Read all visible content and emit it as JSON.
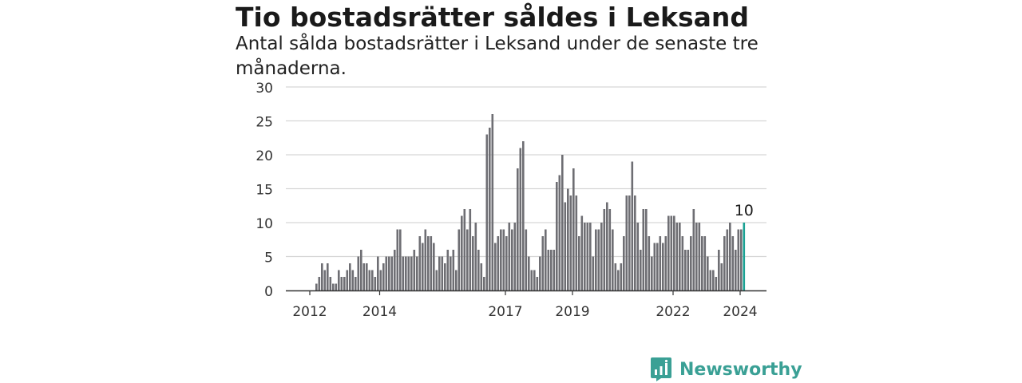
{
  "title": "Tio bostadsrätter såldes i Leksand",
  "subtitle": "Antal sålda bostadsrätter i Leksand under de senaste tre månaderna.",
  "brand": "Newsworthy",
  "colors": {
    "bar": "#6e6e73",
    "highlight": "#1aa193",
    "grid": "#d6d6d6",
    "axis": "#333333",
    "brand": "#3aa095"
  },
  "chart_data": {
    "type": "bar",
    "ylim": [
      0,
      30
    ],
    "yticks": [
      0,
      5,
      10,
      15,
      20,
      25,
      30
    ],
    "xtick_labels": [
      "2012",
      "2014",
      "2017",
      "2019",
      "2022",
      "2024"
    ],
    "grid": true,
    "last_value_label": "10",
    "values": [
      0,
      0,
      0,
      0,
      0,
      0,
      0,
      0,
      0,
      0,
      1,
      2,
      4,
      3,
      4,
      2,
      1,
      1,
      3,
      2,
      2,
      3,
      4,
      3,
      2,
      5,
      6,
      4,
      4,
      3,
      3,
      2,
      5,
      3,
      4,
      5,
      5,
      5,
      6,
      9,
      9,
      5,
      5,
      5,
      5,
      6,
      5,
      8,
      7,
      9,
      8,
      8,
      7,
      3,
      5,
      5,
      4,
      6,
      5,
      6,
      3,
      9,
      11,
      12,
      9,
      12,
      8,
      10,
      6,
      4,
      2,
      23,
      24,
      26,
      7,
      8,
      9,
      9,
      8,
      10,
      9,
      10,
      18,
      21,
      22,
      9,
      5,
      3,
      3,
      2,
      5,
      8,
      9,
      6,
      6,
      6,
      16,
      17,
      20,
      13,
      15,
      14,
      18,
      14,
      8,
      11,
      10,
      10,
      10,
      5,
      9,
      9,
      10,
      12,
      13,
      12,
      9,
      4,
      3,
      4,
      8,
      14,
      14,
      19,
      14,
      10,
      6,
      12,
      12,
      8,
      5,
      7,
      7,
      8,
      7,
      8,
      11,
      11,
      11,
      10,
      10,
      8,
      6,
      6,
      8,
      12,
      10,
      10,
      8,
      8,
      5,
      3,
      3,
      2,
      6,
      4,
      8,
      9,
      10,
      8,
      6,
      9,
      9,
      10
    ]
  }
}
